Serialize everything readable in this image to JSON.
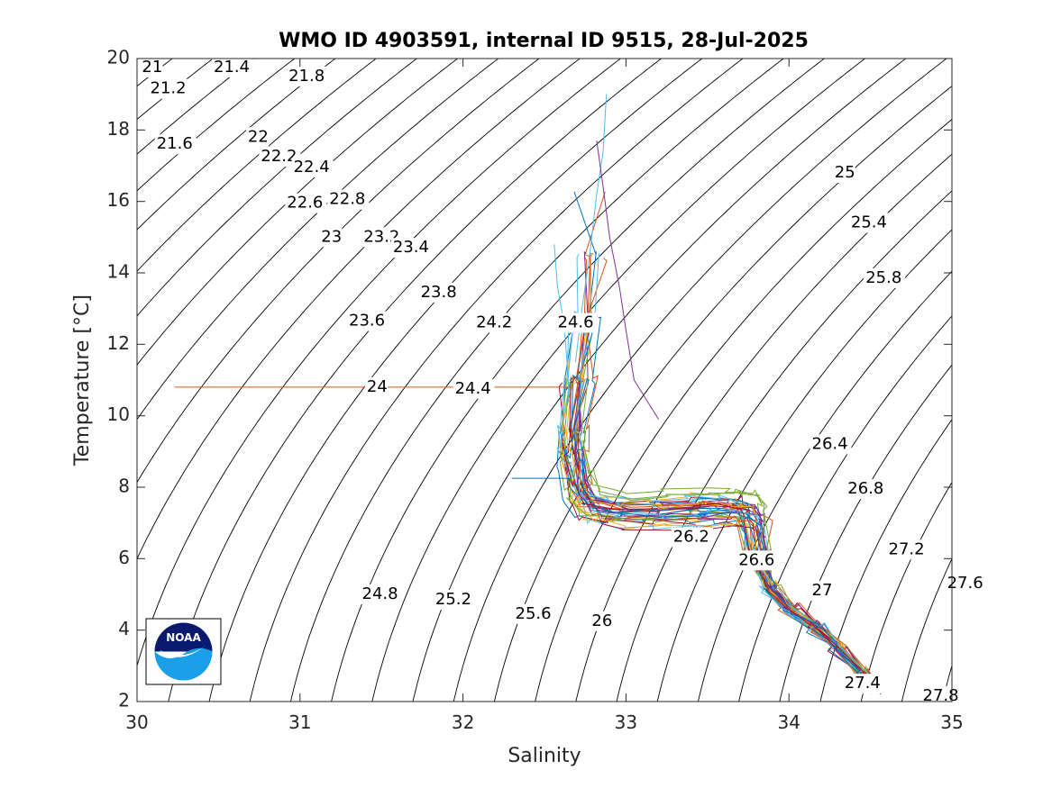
{
  "chart_data": {
    "type": "line",
    "subtype": "T-S diagram with potential density (sigma) contours",
    "title": "WMO ID 4903591, internal ID 9515, 28-Jul-2025",
    "xlabel": "Salinity",
    "ylabel": "Temperature [°C]",
    "xlim": [
      30,
      35
    ],
    "ylim": [
      2,
      20
    ],
    "xticks": [
      "30",
      "31",
      "32",
      "33",
      "34",
      "35"
    ],
    "yticks": [
      "2",
      "4",
      "6",
      "8",
      "10",
      "12",
      "14",
      "16",
      "18",
      "20"
    ],
    "grid": false,
    "logo": "NOAA",
    "density_contours": {
      "color": "#000000",
      "levels": [
        21,
        21.2,
        21.4,
        21.6,
        21.8,
        22,
        22.2,
        22.4,
        22.6,
        22.8,
        23,
        23.2,
        23.4,
        23.6,
        23.8,
        24,
        24.2,
        24.4,
        24.6,
        24.8,
        25,
        25.2,
        25.4,
        25.6,
        25.8,
        26,
        26.2,
        26.4,
        26.6,
        26.8,
        27,
        27.2,
        27.4,
        27.6,
        27.8
      ],
      "labels": [
        {
          "text": "21",
          "s": 30.03,
          "t": 19.75
        },
        {
          "text": "21.2",
          "s": 30.08,
          "t": 19.15
        },
        {
          "text": "21.4",
          "s": 30.47,
          "t": 19.75
        },
        {
          "text": "21.8",
          "s": 30.93,
          "t": 19.5
        },
        {
          "text": "21.6",
          "s": 30.12,
          "t": 17.6
        },
        {
          "text": "22",
          "s": 30.68,
          "t": 17.8
        },
        {
          "text": "22.2",
          "s": 30.76,
          "t": 17.25
        },
        {
          "text": "22.4",
          "s": 30.96,
          "t": 16.95
        },
        {
          "text": "22.6",
          "s": 30.92,
          "t": 15.95
        },
        {
          "text": "22.8",
          "s": 31.18,
          "t": 16.05
        },
        {
          "text": "23",
          "s": 31.13,
          "t": 15.0
        },
        {
          "text": "23.2",
          "s": 31.39,
          "t": 15.0
        },
        {
          "text": "23.4",
          "s": 31.57,
          "t": 14.7
        },
        {
          "text": "23.6",
          "s": 31.3,
          "t": 12.65
        },
        {
          "text": "23.8",
          "s": 31.74,
          "t": 13.45
        },
        {
          "text": "24",
          "s": 31.41,
          "t": 10.8
        },
        {
          "text": "24.2",
          "s": 32.08,
          "t": 12.6
        },
        {
          "text": "24.4",
          "s": 31.95,
          "t": 10.75
        },
        {
          "text": "24.6",
          "s": 32.58,
          "t": 12.6
        },
        {
          "text": "24.8",
          "s": 31.38,
          "t": 5.0
        },
        {
          "text": "25",
          "s": 34.28,
          "t": 16.8
        },
        {
          "text": "25.2",
          "s": 31.83,
          "t": 4.85
        },
        {
          "text": "25.4",
          "s": 34.38,
          "t": 15.4
        },
        {
          "text": "25.6",
          "s": 32.32,
          "t": 4.45
        },
        {
          "text": "25.8",
          "s": 34.47,
          "t": 13.85
        },
        {
          "text": "26",
          "s": 32.79,
          "t": 4.25
        },
        {
          "text": "26.2",
          "s": 33.29,
          "t": 6.6
        },
        {
          "text": "26.4",
          "s": 34.14,
          "t": 9.2
        },
        {
          "text": "26.6",
          "s": 33.69,
          "t": 5.95
        },
        {
          "text": "26.8",
          "s": 34.36,
          "t": 7.95
        },
        {
          "text": "27",
          "s": 34.14,
          "t": 5.1
        },
        {
          "text": "27.2",
          "s": 34.61,
          "t": 6.25
        },
        {
          "text": "27.4",
          "s": 34.34,
          "t": 2.5
        },
        {
          "text": "27.6",
          "s": 34.97,
          "t": 5.3
        },
        {
          "text": "27.8",
          "s": 34.82,
          "t": 2.15
        }
      ]
    },
    "profiles": {
      "count": 36,
      "colors": [
        "#0072BD",
        "#D95319",
        "#EDB120",
        "#7E2F8E",
        "#77AC30",
        "#4DBEEE",
        "#A2142F"
      ],
      "base_path": [
        [
          32.66,
          16.3
        ],
        [
          32.68,
          14.5
        ],
        [
          32.69,
          12.8
        ],
        [
          32.67,
          11.0
        ],
        [
          32.66,
          9.6
        ],
        [
          32.67,
          8.5
        ],
        [
          32.7,
          7.6
        ],
        [
          32.78,
          7.1
        ],
        [
          32.95,
          6.95
        ],
        [
          33.2,
          6.95
        ],
        [
          33.45,
          7.0
        ],
        [
          33.62,
          7.05
        ],
        [
          33.74,
          6.95
        ],
        [
          33.78,
          6.7
        ],
        [
          33.8,
          6.2
        ],
        [
          33.83,
          5.7
        ],
        [
          33.88,
          5.2
        ],
        [
          34.0,
          4.6
        ],
        [
          34.15,
          4.1
        ],
        [
          34.3,
          3.55
        ],
        [
          34.45,
          2.8
        ],
        [
          34.52,
          2.3
        ]
      ],
      "outliers": [
        {
          "color": "#D95319",
          "points": [
            [
              30.23,
              10.8
            ],
            [
              32.66,
              10.8
            ]
          ]
        },
        {
          "color": "#0072BD",
          "points": [
            [
              32.3,
              8.25
            ],
            [
              32.66,
              8.25
            ]
          ]
        },
        {
          "color": "#4DBEEE",
          "points": [
            [
              32.88,
              19.0
            ],
            [
              32.86,
              17.4
            ],
            [
              32.82,
              16.2
            ],
            [
              32.78,
              14.6
            ],
            [
              32.73,
              13.0
            ],
            [
              32.69,
              11.5
            ]
          ]
        },
        {
          "color": "#7E2F8E",
          "points": [
            [
              32.82,
              17.7
            ],
            [
              32.86,
              16.4
            ],
            [
              32.9,
              15.0
            ],
            [
              32.96,
              13.6
            ],
            [
              33.0,
              12.4
            ],
            [
              33.05,
              11.0
            ],
            [
              33.2,
              9.9
            ]
          ]
        },
        {
          "color": "#4DBEEE",
          "points": [
            [
              32.56,
              14.8
            ],
            [
              32.58,
              13.6
            ],
            [
              32.62,
              12.6
            ],
            [
              32.64,
              11.4
            ],
            [
              32.65,
              10.4
            ]
          ]
        }
      ]
    }
  }
}
